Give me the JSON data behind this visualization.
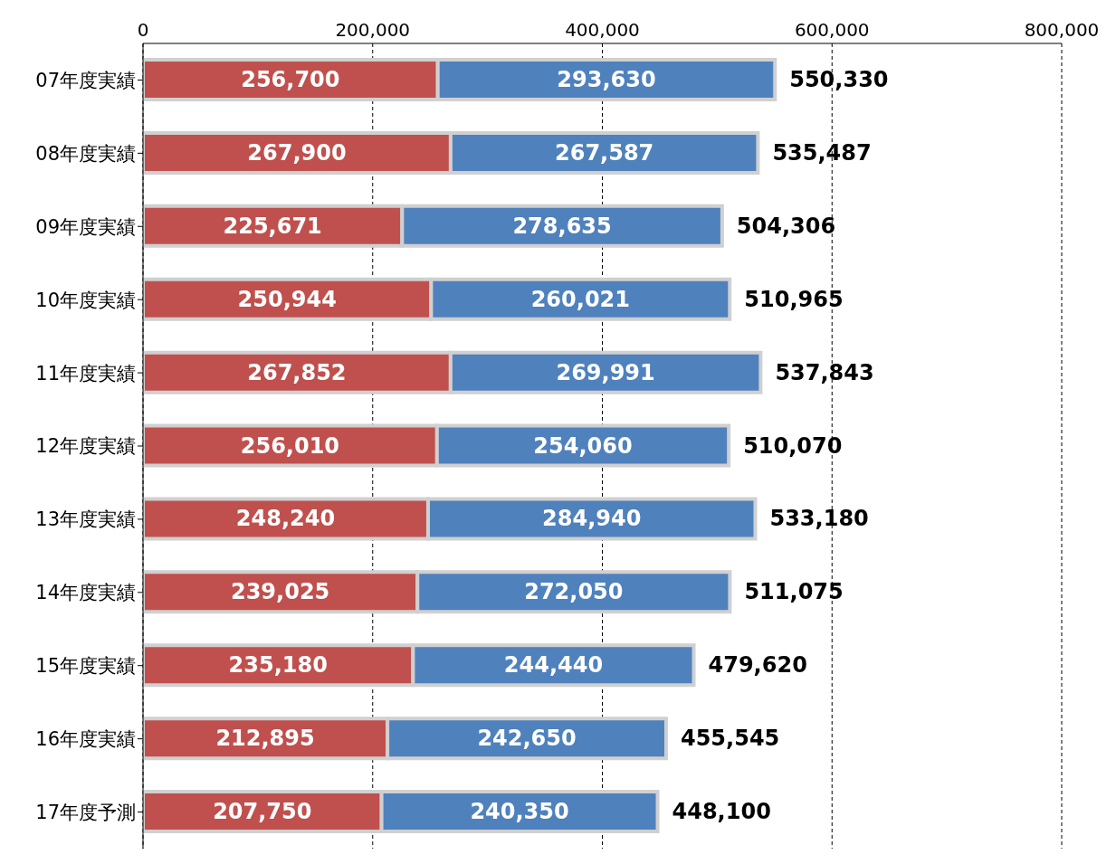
{
  "chart_data": {
    "type": "bar",
    "orientation": "horizontal",
    "stacked": true,
    "categories": [
      "07年度実績",
      "08年度実績",
      "09年度実績",
      "10年度実績",
      "11年度実績",
      "12年度実績",
      "13年度実績",
      "14年度実績",
      "15年度実績",
      "16年度実績",
      "17年度予測"
    ],
    "series": [
      {
        "color": "#c0504d",
        "values": [
          256700,
          267900,
          225671,
          250944,
          267852,
          256010,
          248240,
          239025,
          235180,
          212895,
          207750
        ],
        "value_labels": [
          "256,700",
          "267,900",
          "225,671",
          "250,944",
          "267,852",
          "256,010",
          "248,240",
          "239,025",
          "235,180",
          "212,895",
          "207,750"
        ]
      },
      {
        "color": "#4f81bd",
        "values": [
          293630,
          267587,
          278635,
          260021,
          269991,
          254060,
          284940,
          272050,
          244440,
          242650,
          240350
        ],
        "value_labels": [
          "293,630",
          "267,587",
          "278,635",
          "260,021",
          "269,991",
          "254,060",
          "284,940",
          "272,050",
          "244,440",
          "242,650",
          "240,350"
        ]
      }
    ],
    "totals": [
      "550,330",
      "535,487",
      "504,306",
      "510,965",
      "537,843",
      "510,070",
      "533,180",
      "511,075",
      "479,620",
      "455,545",
      "448,100"
    ],
    "xlim": [
      0,
      800000
    ],
    "xticks": [
      0,
      {
        "value": 200000,
        "label": "200,000"
      },
      {
        "value": 400000,
        "label": "400,000"
      },
      {
        "value": 600000,
        "label": "600,000"
      },
      {
        "value": 800000,
        "label": "800,000"
      }
    ],
    "grid": "x",
    "legend": false
  }
}
